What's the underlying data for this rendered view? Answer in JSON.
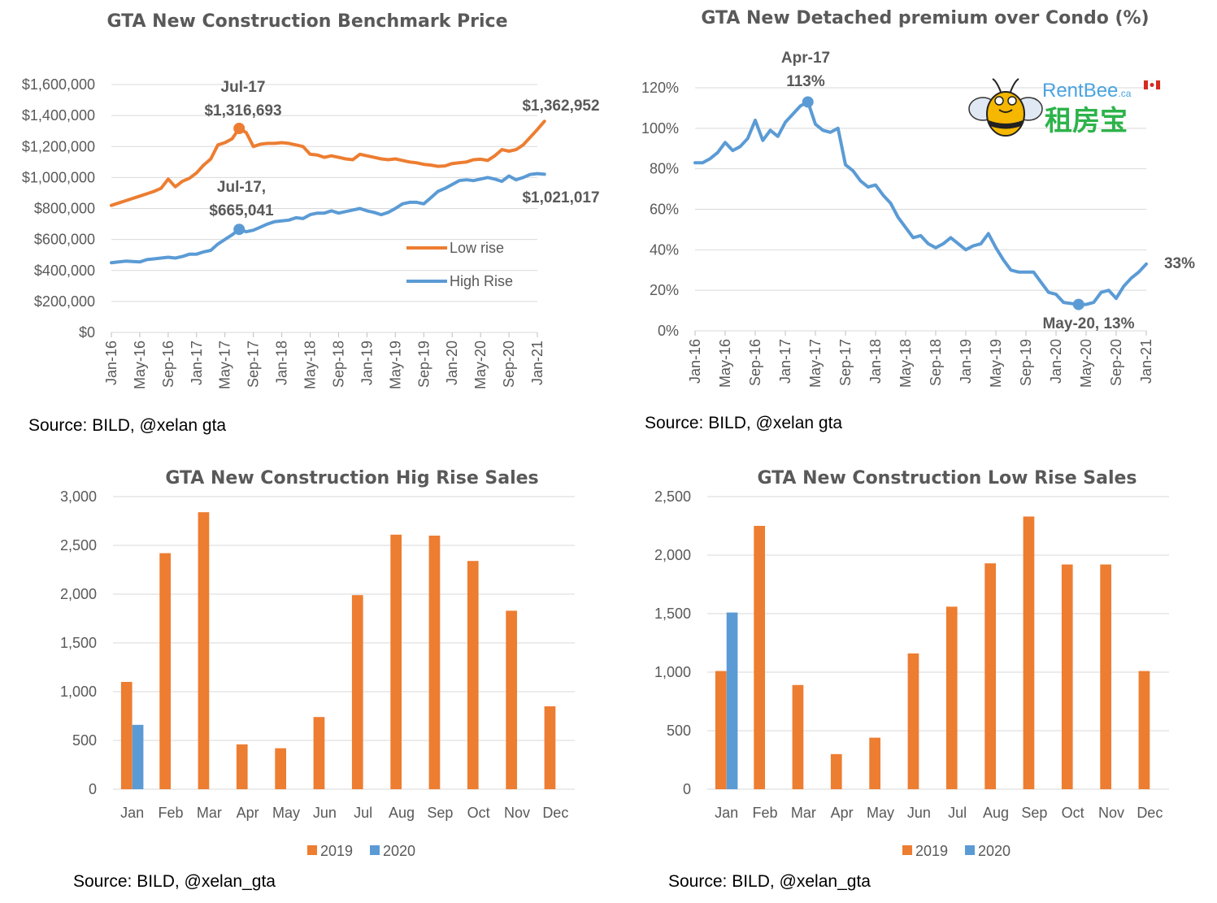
{
  "colors": {
    "orange": "#ed7d31",
    "blue": "#5b9bd5",
    "grid": "#d9d9d9",
    "text": "#595959"
  },
  "brand": {
    "name": "RentBee",
    "suffix": ".ca",
    "chinese": "租房宝",
    "icon": "bee-icon",
    "flag": "canada-flag-icon"
  },
  "chart_data": [
    {
      "type": "line",
      "title": "GTA New Construction Benchmark Price",
      "source": "Source: BILD, @xelan  gta",
      "ylim": [
        0,
        1600000
      ],
      "yticks": [
        "$0",
        "$200,000",
        "$400,000",
        "$600,000",
        "$800,000",
        "$1,000,000",
        "$1,200,000",
        "$1,400,000",
        "$1,600,000"
      ],
      "xticks": [
        "Jan-16",
        "May-16",
        "Sep-16",
        "Jan-17",
        "May-17",
        "Sep-17",
        "Jan-18",
        "May-18",
        "Sep-18",
        "Jan-19",
        "May-19",
        "Sep-19",
        "Jan-20",
        "May-20",
        "Sep-20",
        "Jan-21"
      ],
      "x_start": "Jan-16",
      "legend": "right",
      "series": [
        {
          "name": "Low rise",
          "color": "#ed7d31",
          "values": [
            820000,
            835000,
            850000,
            865000,
            880000,
            895000,
            910000,
            930000,
            990000,
            940000,
            975000,
            995000,
            1030000,
            1080000,
            1120000,
            1210000,
            1225000,
            1250000,
            1316693,
            1290000,
            1200000,
            1215000,
            1220000,
            1220000,
            1225000,
            1220000,
            1210000,
            1200000,
            1150000,
            1145000,
            1130000,
            1140000,
            1130000,
            1120000,
            1115000,
            1150000,
            1140000,
            1130000,
            1120000,
            1115000,
            1120000,
            1110000,
            1100000,
            1095000,
            1085000,
            1080000,
            1072000,
            1075000,
            1090000,
            1095000,
            1100000,
            1115000,
            1118000,
            1110000,
            1140000,
            1180000,
            1170000,
            1180000,
            1210000,
            1260000,
            1310000,
            1362952
          ]
        },
        {
          "name": "High Rise",
          "color": "#5b9bd5",
          "values": [
            450000,
            455000,
            460000,
            458000,
            455000,
            470000,
            475000,
            480000,
            485000,
            480000,
            490000,
            505000,
            505000,
            520000,
            530000,
            570000,
            600000,
            630000,
            665041,
            650000,
            660000,
            680000,
            700000,
            715000,
            720000,
            725000,
            740000,
            735000,
            760000,
            770000,
            770000,
            785000,
            770000,
            780000,
            790000,
            800000,
            785000,
            775000,
            760000,
            775000,
            800000,
            830000,
            840000,
            840000,
            830000,
            870000,
            910000,
            930000,
            955000,
            980000,
            985000,
            980000,
            990000,
            1000000,
            990000,
            975000,
            1010000,
            985000,
            1000000,
            1020000,
            1025000,
            1021017
          ]
        }
      ],
      "annotations": [
        {
          "label": "Jul-17",
          "value": "$1,316,693"
        },
        {
          "label": "$1,362,952"
        },
        {
          "label": "Jul-17,",
          "value": "$665,041"
        },
        {
          "label": "$1,021,017"
        }
      ]
    },
    {
      "type": "line",
      "title": "GTA New Detached premium over Condo (%)",
      "source": "Source: BILD, @xelan  gta",
      "ylim": [
        0,
        120
      ],
      "yticks": [
        "0%",
        "20%",
        "40%",
        "60%",
        "80%",
        "100%",
        "120%"
      ],
      "xticks": [
        "Jan-16",
        "May-16",
        "Sep-16",
        "Jan-17",
        "May-17",
        "Sep-17",
        "Jan-18",
        "May-18",
        "Sep-18",
        "Jan-19",
        "May-19",
        "Sep-19",
        "Jan-20",
        "May-20",
        "Sep-20",
        "Jan-21"
      ],
      "x_start": "Jan-16",
      "series": [
        {
          "name": "",
          "color": "#5b9bd5",
          "values": [
            83,
            83,
            85,
            88,
            93,
            89,
            91,
            95,
            104,
            94,
            99,
            96,
            103,
            107,
            111,
            113,
            102,
            99,
            98,
            100,
            82,
            79,
            74,
            71,
            72,
            67,
            63,
            56,
            51,
            46,
            47,
            43,
            41,
            43,
            46,
            43,
            40,
            42,
            43,
            48,
            41,
            35,
            30,
            29,
            29,
            29,
            24,
            19,
            18,
            14,
            13.5,
            13,
            13,
            14,
            19,
            20,
            16,
            22,
            26,
            29,
            33
          ]
        }
      ],
      "annotations": [
        {
          "label": "Apr-17",
          "value": "113%"
        },
        {
          "label": "May-20, 13%"
        },
        {
          "label": "33%"
        }
      ]
    },
    {
      "type": "bar",
      "title": "GTA New Construction Hig Rise Sales",
      "source": "Source: BILD, @xelan_gta",
      "ylim": [
        0,
        3000
      ],
      "yticks": [
        "0",
        "500",
        "1,000",
        "1,500",
        "2,000",
        "2,500",
        "3,000"
      ],
      "categories": [
        "Jan",
        "Feb",
        "Mar",
        "Apr",
        "May",
        "Jun",
        "Jul",
        "Aug",
        "Sep",
        "Oct",
        "Nov",
        "Dec"
      ],
      "legend": "bottom",
      "series": [
        {
          "name": "2019",
          "color": "#ed7d31",
          "values": [
            1100,
            2420,
            2840,
            460,
            420,
            740,
            1990,
            2610,
            2600,
            2340,
            1830,
            850
          ]
        },
        {
          "name": "2020",
          "color": "#5b9bd5",
          "values": [
            660,
            null,
            null,
            null,
            null,
            null,
            null,
            null,
            null,
            null,
            null,
            null
          ]
        }
      ]
    },
    {
      "type": "bar",
      "title": "GTA New Construction Low Rise Sales",
      "source": "Source: BILD, @xelan_gta",
      "ylim": [
        0,
        2500
      ],
      "yticks": [
        "0",
        "500",
        "1,000",
        "1,500",
        "2,000",
        "2,500"
      ],
      "categories": [
        "Jan",
        "Feb",
        "Mar",
        "Apr",
        "May",
        "Jun",
        "Jul",
        "Aug",
        "Sep",
        "Oct",
        "Nov",
        "Dec"
      ],
      "legend": "bottom",
      "series": [
        {
          "name": "2019",
          "color": "#ed7d31",
          "values": [
            1010,
            2250,
            890,
            300,
            440,
            1160,
            1560,
            1930,
            2330,
            1920,
            1920,
            1010
          ]
        },
        {
          "name": "2020",
          "color": "#5b9bd5",
          "values": [
            1510,
            null,
            null,
            null,
            null,
            null,
            null,
            null,
            null,
            null,
            null,
            null
          ]
        }
      ]
    }
  ]
}
